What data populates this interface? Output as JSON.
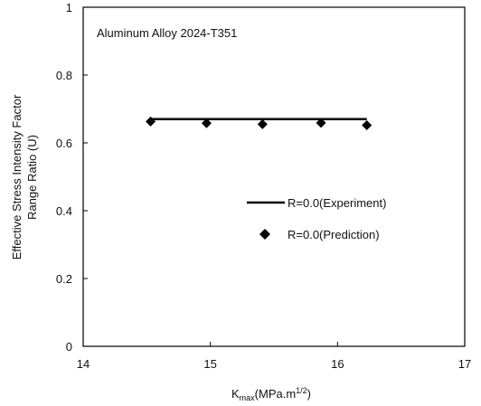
{
  "chart_data": {
    "type": "scatter",
    "annotation": "Aluminum Alloy 2024-T351",
    "ylabel_line1": "Effective Stress Intensity Factor",
    "ylabel_line2": "Range Ratio (U)",
    "xlabel": {
      "prefix": "K",
      "subscript": "max",
      "middle": "(MPa.m",
      "superscript": "1/2",
      "suffix": ")"
    },
    "xlim": [
      14,
      17
    ],
    "ylim": [
      0,
      1
    ],
    "x_ticks": [
      "14",
      "15",
      "16",
      "17"
    ],
    "y_ticks": [
      "0",
      "0.2",
      "0.4",
      "0.6",
      "0.8",
      "1"
    ],
    "grid": false,
    "legend_position": "right-middle",
    "series": [
      {
        "name": "R=0.0(Experiment)",
        "kind": "line",
        "color": "#000000",
        "x": [
          14.53,
          16.23
        ],
        "y": [
          0.67,
          0.67
        ]
      },
      {
        "name": "R=0.0(Prediction)",
        "kind": "marker",
        "marker": "diamond",
        "color": "#000000",
        "x": [
          14.53,
          14.97,
          15.41,
          15.87,
          16.23
        ],
        "y": [
          0.663,
          0.658,
          0.655,
          0.659,
          0.652
        ]
      }
    ]
  }
}
